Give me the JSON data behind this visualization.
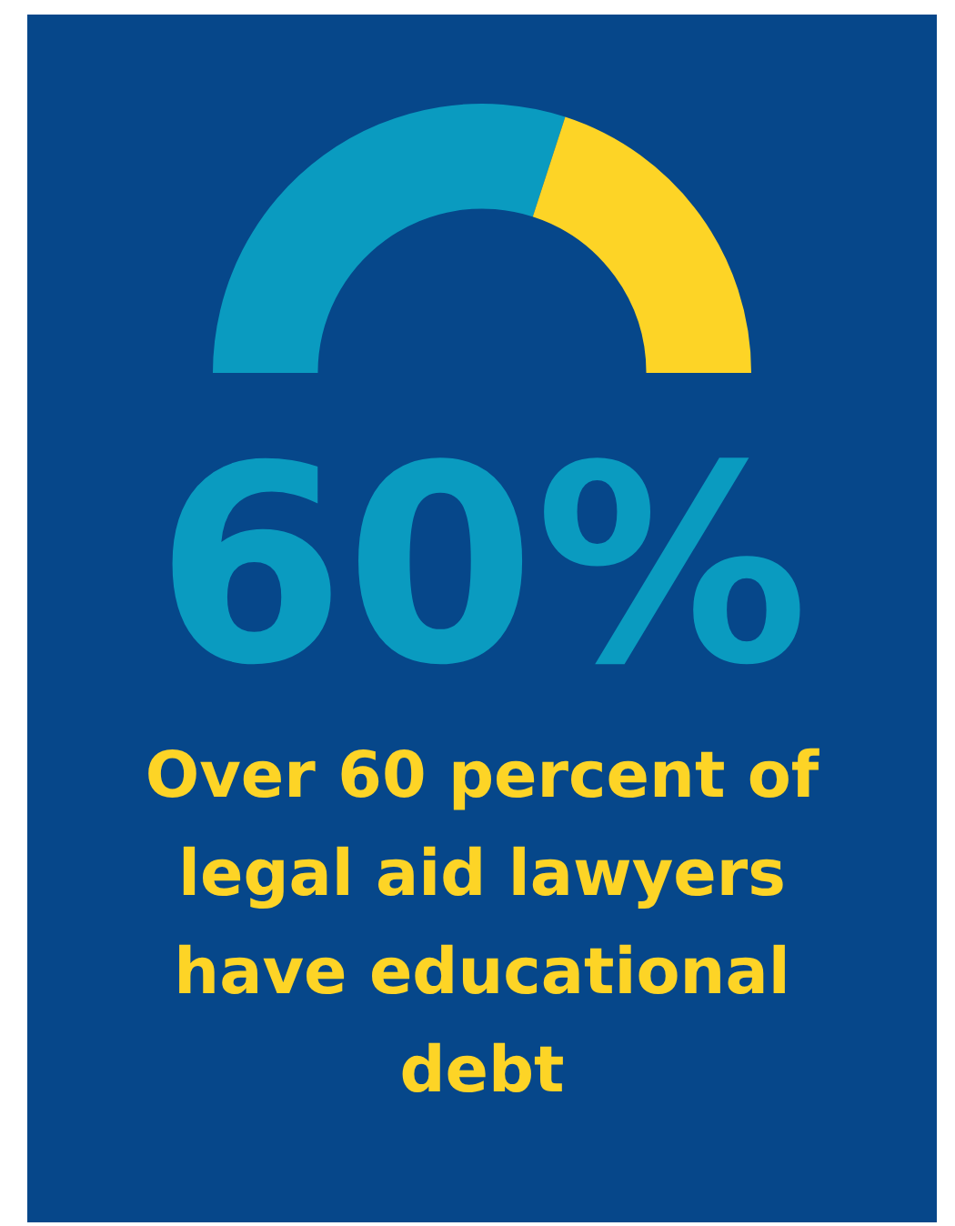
{
  "chart_data": {
    "type": "donut",
    "title": "Over 60 percent of legal aid lawyers have educational debt",
    "categories": [
      null,
      null
    ],
    "values": [
      60,
      40
    ],
    "colors": [
      "#0a9bc0",
      "#fdd426"
    ],
    "annotations": [
      "60%"
    ],
    "legend": false
  }
}
